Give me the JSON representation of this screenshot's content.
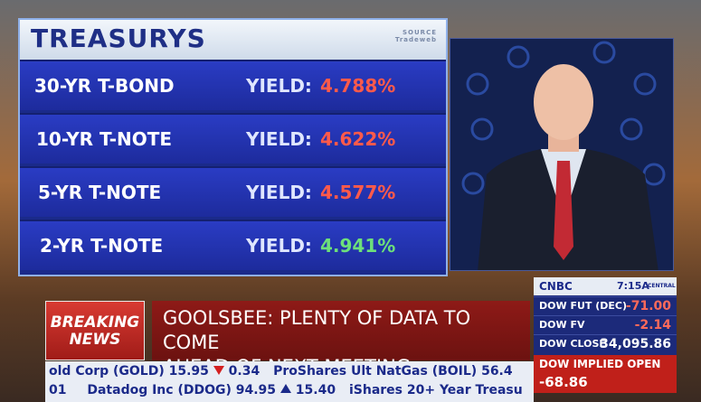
{
  "treasuries": {
    "title": "TREASURYS",
    "source": [
      "SOURCE",
      "Tradeweb"
    ],
    "rows": [
      {
        "name": "30-YR T-BOND",
        "yield_label": "YIELD:",
        "yield": "4.788%"
      },
      {
        "name": "10-YR T-NOTE",
        "yield_label": "YIELD:",
        "yield": "4.622%"
      },
      {
        "name": "5-YR T-NOTE",
        "yield_label": "YIELD:",
        "yield": "4.577%"
      },
      {
        "name": "2-YR T-NOTE",
        "yield_label": "YIELD:",
        "yield": "4.941%"
      }
    ]
  },
  "breaking": [
    "BREAKING",
    "NEWS"
  ],
  "headline": [
    "GOOLSBEE: PLENTY OF DATA TO COME",
    "AHEAD OF NEXT MEETING"
  ],
  "market": {
    "logo": "CNBC",
    "time": "7:15A",
    "zone": "CENTRAL",
    "rows": [
      {
        "label": "DOW FUT (DEC)",
        "value": "-71.00"
      },
      {
        "label": "DOW FV",
        "value": "-2.14"
      },
      {
        "label": "DOW CLOSE",
        "value": "34,095.86"
      }
    ],
    "implied": {
      "label": "DOW IMPLIED OPEN",
      "value": "-68.86"
    }
  },
  "ticker": [
    [
      "old Corp (GOLD) 15.95",
      "0.34",
      "ProShares Ult NatGas (BOIL) 56.4"
    ],
    [
      "01",
      "Datadog Inc (DDOG) 94.95",
      "15.40",
      "iShares 20+ Year Treasu"
    ]
  ]
}
